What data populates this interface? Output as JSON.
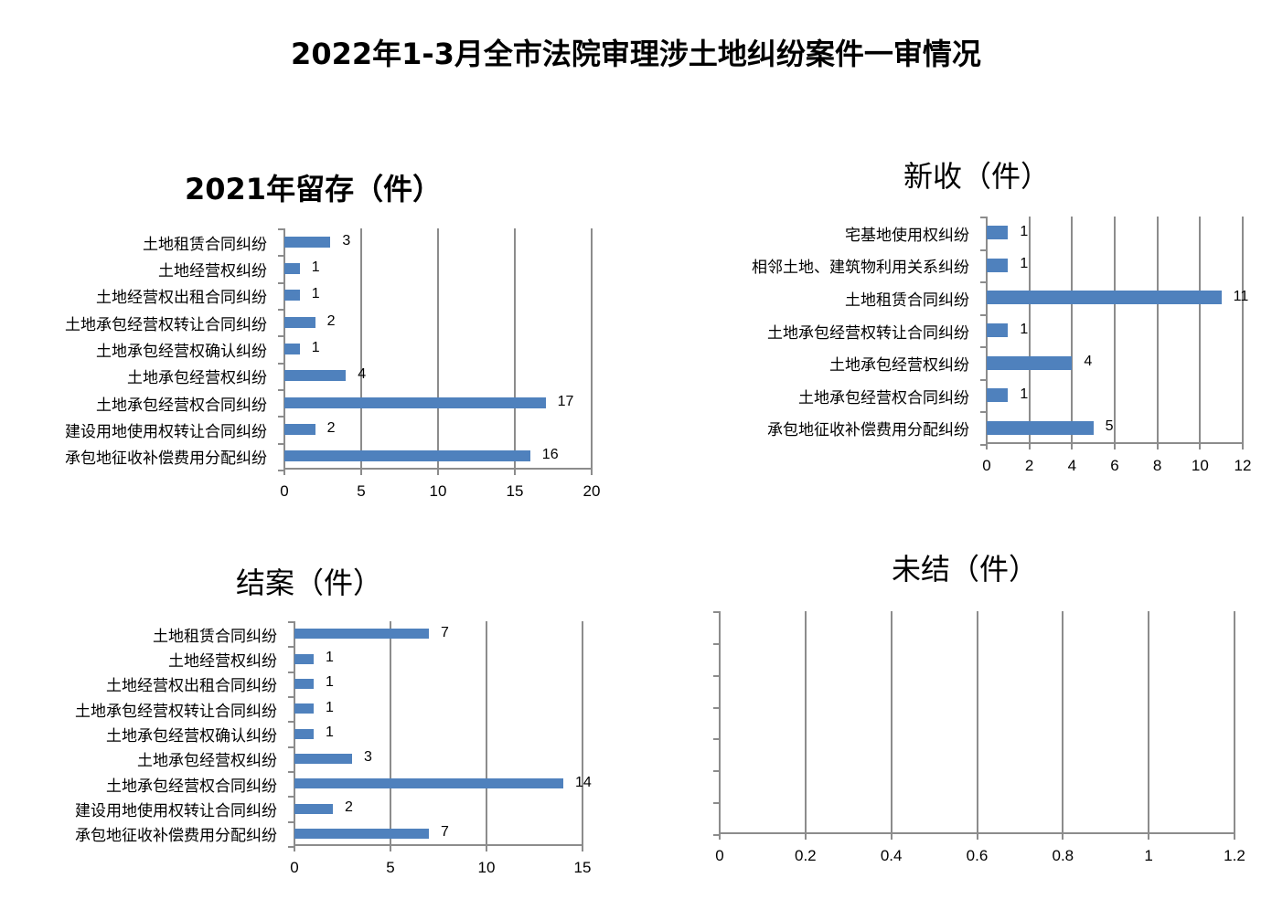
{
  "title": "2022年1-3月全市法院审理涉土地纠纷案件一审情况",
  "colors": {
    "bar": "#4f81bd",
    "grid": "#8c8c8c"
  },
  "chart_data": [
    {
      "id": "retained",
      "type": "bar",
      "orientation": "horizontal",
      "title": "2021年留存（件）",
      "categories": [
        "土地租赁合同纠纷",
        "土地经营权纠纷",
        "土地经营权出租合同纠纷",
        "土地承包经营权转让合同纠纷",
        "土地承包经营权确认纠纷",
        "土地承包经营权纠纷",
        "土地承包经营权合同纠纷",
        "建设用地使用权转让合同纠纷",
        "承包地征收补偿费用分配纠纷"
      ],
      "values": [
        3,
        1,
        1,
        2,
        1,
        4,
        17,
        2,
        16
      ],
      "xticks": [
        0,
        5,
        10,
        15,
        20
      ],
      "xlim": [
        0,
        20
      ],
      "grid": true,
      "legend": "none"
    },
    {
      "id": "new",
      "type": "bar",
      "orientation": "horizontal",
      "title": "新收（件）",
      "categories": [
        "宅基地使用权纠纷",
        "相邻土地、建筑物利用关系纠纷",
        "土地租赁合同纠纷",
        "土地承包经营权转让合同纠纷",
        "土地承包经营权纠纷",
        "土地承包经营权合同纠纷",
        "承包地征收补偿费用分配纠纷"
      ],
      "values": [
        1,
        1,
        11,
        1,
        4,
        1,
        5
      ],
      "xticks": [
        0,
        2,
        4,
        6,
        8,
        10,
        12
      ],
      "xlim": [
        0,
        12
      ],
      "grid": true,
      "legend": "none"
    },
    {
      "id": "closed",
      "type": "bar",
      "orientation": "horizontal",
      "title": "结案（件）",
      "categories": [
        "土地租赁合同纠纷",
        "土地经营权纠纷",
        "土地经营权出租合同纠纷",
        "土地承包经营权转让合同纠纷",
        "土地承包经营权确认纠纷",
        "土地承包经营权纠纷",
        "土地承包经营权合同纠纷",
        "建设用地使用权转让合同纠纷",
        "承包地征收补偿费用分配纠纷"
      ],
      "values": [
        7,
        1,
        1,
        1,
        1,
        3,
        14,
        2,
        7
      ],
      "xticks": [
        0,
        5,
        10,
        15
      ],
      "xlim": [
        0,
        15
      ],
      "grid": true,
      "legend": "none"
    },
    {
      "id": "pending",
      "type": "bar",
      "orientation": "horizontal",
      "title": "未结（件）",
      "categories": [
        "",
        "",
        "",
        "",
        "",
        "",
        ""
      ],
      "values": [],
      "xticks": [
        0,
        0.2,
        0.4,
        0.6,
        0.8,
        1,
        1.2
      ],
      "xlim": [
        0,
        1.2
      ],
      "grid": true,
      "legend": "none"
    }
  ]
}
